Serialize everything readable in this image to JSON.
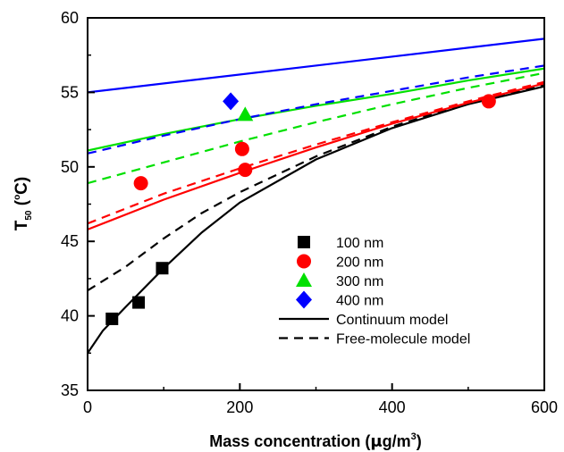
{
  "chart_data": {
    "type": "scatter",
    "xlabel": {
      "main": "Mass concentration (",
      "mu": "μ",
      "unit": "g/m",
      "sup": "3",
      "close": ")"
    },
    "ylabel": {
      "main": "T",
      "sub": "50",
      "open": " (",
      "deg": "o",
      "unit": "C)"
    },
    "xlim": [
      0,
      600
    ],
    "ylim": [
      35,
      60
    ],
    "x_ticks": [
      0,
      200,
      400,
      600
    ],
    "y_ticks": [
      35,
      40,
      45,
      50,
      55,
      60
    ],
    "grid": false,
    "legend_placement": "center-right",
    "series": [
      {
        "name": "100 nm",
        "marker": "square",
        "color": "#000000",
        "points": [
          [
            32,
            39.8
          ],
          [
            67,
            40.9
          ],
          [
            98,
            43.2
          ]
        ]
      },
      {
        "name": "200 nm",
        "marker": "circle",
        "color": "#ff0000",
        "points": [
          [
            70,
            48.9
          ],
          [
            203,
            51.2
          ],
          [
            207,
            49.8
          ],
          [
            527,
            54.4
          ]
        ]
      },
      {
        "name": "300 nm",
        "marker": "triangle",
        "color": "#00e000",
        "points": [
          [
            207,
            53.5
          ]
        ]
      },
      {
        "name": "400 nm",
        "marker": "diamond",
        "color": "#0000ff",
        "points": [
          [
            188,
            54.4
          ]
        ]
      }
    ],
    "model_lines": [
      {
        "model": "Continuum model",
        "size": "100 nm",
        "color": "#000000",
        "dash": "solid",
        "points": [
          [
            0,
            37.5
          ],
          [
            20,
            39.0
          ],
          [
            50,
            40.6
          ],
          [
            100,
            43.2
          ],
          [
            150,
            45.6
          ],
          [
            200,
            47.6
          ],
          [
            300,
            50.5
          ],
          [
            400,
            52.6
          ],
          [
            500,
            54.2
          ],
          [
            600,
            55.4
          ]
        ]
      },
      {
        "model": "Free-molecule model",
        "size": "100 nm",
        "color": "#000000",
        "dash": "dashed",
        "points": [
          [
            0,
            41.7
          ],
          [
            50,
            43.3
          ],
          [
            100,
            45.2
          ],
          [
            150,
            46.9
          ],
          [
            200,
            48.3
          ],
          [
            300,
            50.7
          ],
          [
            400,
            52.7
          ],
          [
            500,
            54.3
          ],
          [
            600,
            55.5
          ]
        ]
      },
      {
        "model": "Continuum model",
        "size": "200 nm",
        "color": "#ff0000",
        "dash": "solid",
        "points": [
          [
            0,
            45.8
          ],
          [
            100,
            47.8
          ],
          [
            200,
            49.6
          ],
          [
            300,
            51.3
          ],
          [
            400,
            52.9
          ],
          [
            500,
            54.3
          ],
          [
            600,
            55.6
          ]
        ]
      },
      {
        "model": "Free-molecule model",
        "size": "200 nm",
        "color": "#ff0000",
        "dash": "dashed",
        "points": [
          [
            0,
            46.2
          ],
          [
            100,
            48.2
          ],
          [
            200,
            49.9
          ],
          [
            300,
            51.5
          ],
          [
            400,
            53.0
          ],
          [
            500,
            54.4
          ],
          [
            600,
            55.7
          ]
        ]
      },
      {
        "model": "Continuum model",
        "size": "300 nm",
        "color": "#00e000",
        "dash": "solid",
        "points": [
          [
            0,
            51.1
          ],
          [
            100,
            52.2
          ],
          [
            200,
            53.2
          ],
          [
            300,
            54.1
          ],
          [
            400,
            54.9
          ],
          [
            500,
            55.8
          ],
          [
            600,
            56.6
          ]
        ]
      },
      {
        "model": "Free-molecule model",
        "size": "300 nm",
        "color": "#00e000",
        "dash": "dashed",
        "points": [
          [
            0,
            48.9
          ],
          [
            100,
            50.3
          ],
          [
            200,
            51.7
          ],
          [
            300,
            53.0
          ],
          [
            400,
            54.2
          ],
          [
            500,
            55.3
          ],
          [
            600,
            56.3
          ]
        ]
      },
      {
        "model": "Continuum model",
        "size": "400 nm",
        "color": "#0000ff",
        "dash": "solid",
        "points": [
          [
            0,
            55.0
          ],
          [
            600,
            58.6
          ]
        ]
      },
      {
        "model": "Free-molecule model",
        "size": "400 nm",
        "color": "#0000ff",
        "dash": "dashed",
        "points": [
          [
            0,
            50.9
          ],
          [
            100,
            52.1
          ],
          [
            200,
            53.2
          ],
          [
            300,
            54.2
          ],
          [
            400,
            55.1
          ],
          [
            500,
            56.0
          ],
          [
            600,
            56.8
          ]
        ]
      }
    ],
    "legend": [
      {
        "label": "100 nm",
        "kind": "marker",
        "marker": "square",
        "color": "#000000"
      },
      {
        "label": "200 nm",
        "kind": "marker",
        "marker": "circle",
        "color": "#ff0000"
      },
      {
        "label": "300 nm",
        "kind": "marker",
        "marker": "triangle",
        "color": "#00e000"
      },
      {
        "label": "400 nm",
        "kind": "marker",
        "marker": "diamond",
        "color": "#0000ff"
      },
      {
        "label": "Continuum model",
        "kind": "line",
        "dash": "solid",
        "color": "#000000"
      },
      {
        "label": "Free-molecule model",
        "kind": "line",
        "dash": "dashed",
        "color": "#000000"
      }
    ]
  }
}
